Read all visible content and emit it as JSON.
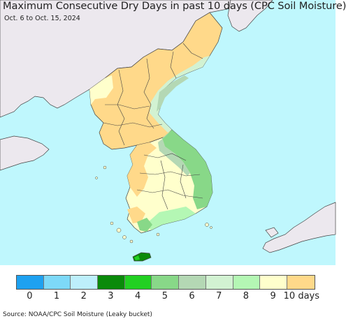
{
  "title": "Maximum Consecutive Dry Days in past 10 days (CPC Soil Moisture)",
  "subtitle": "Oct. 6 to Oct. 15, 2024",
  "legend": {
    "colors": [
      "#1ea1f0",
      "#7dd9f8",
      "#bdeffb",
      "#0a8a0a",
      "#22d022",
      "#88d888",
      "#b4d8b4",
      "#d2f2d2",
      "#b4f7b4",
      "#ffffcc",
      "#ffd98a"
    ],
    "labels": [
      "0",
      "1",
      "2",
      "3",
      "4",
      "5",
      "6",
      "7",
      "8",
      "9",
      "10 days"
    ]
  },
  "source": "Source: NOAA/CPC Soil Moisture (Leaky bucket)",
  "map_colors": {
    "sea": "#bff7fd",
    "foreign_land": "#ece8ee",
    "dry_10": "#ffd98a",
    "dry_9": "#ffffcc",
    "dry_8": "#b4f7b4",
    "dry_7": "#d2f2d2",
    "dry_6": "#b4d8b4",
    "dry_5": "#88d888",
    "dry_3": "#0a8a0a"
  }
}
